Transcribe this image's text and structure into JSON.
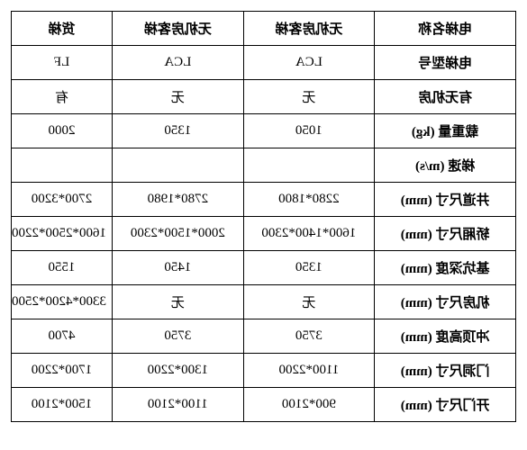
{
  "table": {
    "headers": [
      "电梯名称",
      "无机房客梯",
      "无机房客梯",
      "货梯"
    ],
    "rows": [
      {
        "label": "电梯型号",
        "c2": "LCA",
        "c3": "LCA",
        "c4": "LF"
      },
      {
        "label": "有无机房",
        "c2": "无",
        "c3": "无",
        "c4": "有"
      },
      {
        "label": "载重量 (kg)",
        "c2": "1050",
        "c3": "1350",
        "c4": "2000"
      },
      {
        "label": "梯速 (m/s)",
        "c2": "",
        "c3": "",
        "c4": ""
      },
      {
        "label": "井道尺寸 (mm)",
        "c2": "2280*1800",
        "c3": "2780*1980",
        "c4": "2700*3200"
      },
      {
        "label": "轿厢尺寸 (mm)",
        "c2": "1600*1400*2300",
        "c3": "2000*1500*2300",
        "c4": "1600*2500*2200"
      },
      {
        "label": "基坑深度 (mm)",
        "c2": "1350",
        "c3": "1450",
        "c4": "1550"
      },
      {
        "label": "机房尺寸 (mm)",
        "c2": "无",
        "c3": "无",
        "c4": "3300*4200*2500"
      },
      {
        "label": "冲顶高度 (mm)",
        "c2": "3750",
        "c3": "3750",
        "c4": "4700"
      },
      {
        "label": "门洞尺寸 (mm)",
        "c2": "1100*2200",
        "c3": "1300*2200",
        "c4": "1700*2200"
      },
      {
        "label": "开门尺寸 (mm)",
        "c2": "900*2100",
        "c3": "1100*2100",
        "c4": "1500*2100"
      }
    ],
    "border_color": "#000000",
    "background_color": "#ffffff",
    "font_size": 15
  }
}
